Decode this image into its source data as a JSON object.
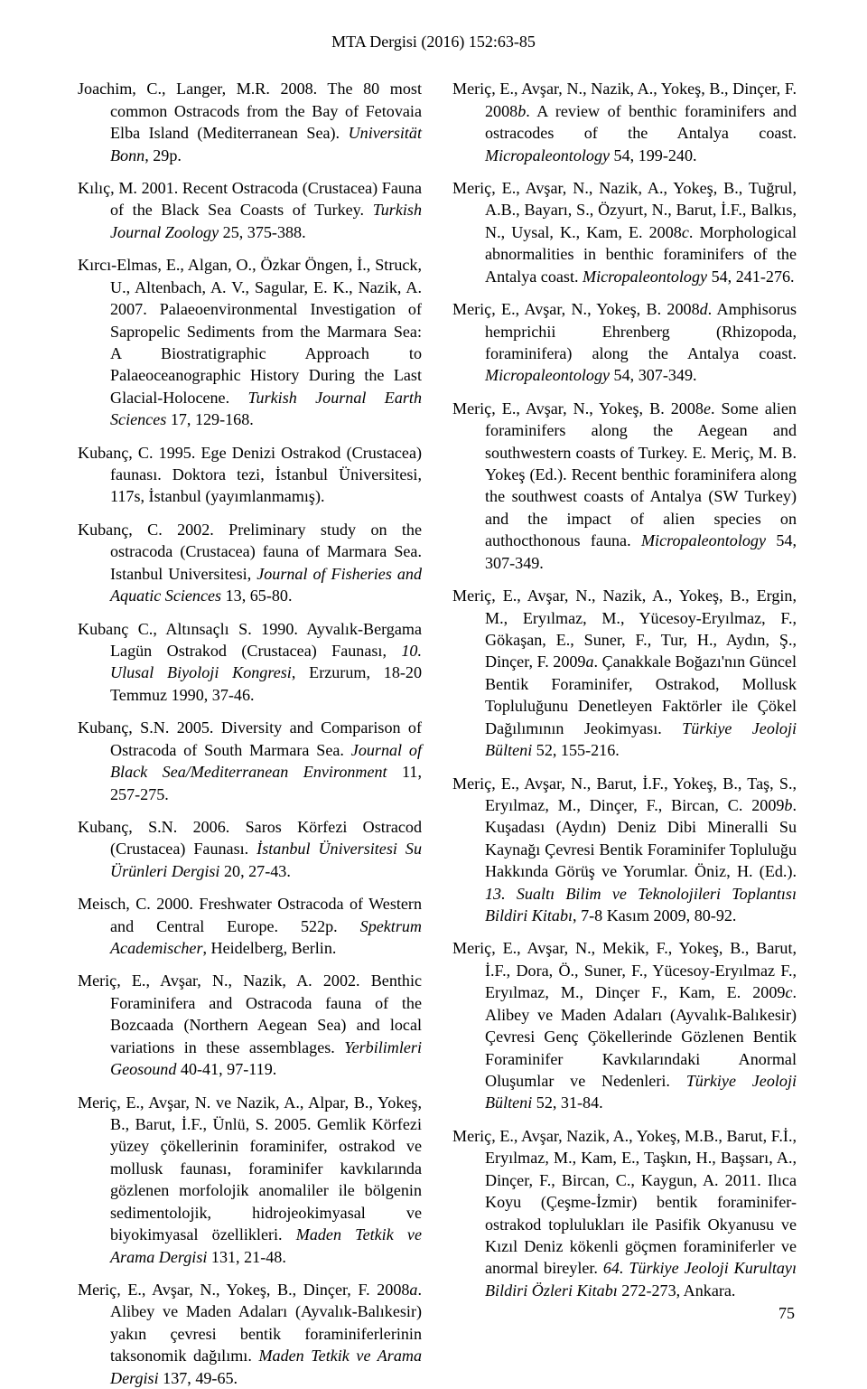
{
  "header": "MTA Dergisi (2016) 152:63-85",
  "page_number": "75",
  "fonts": {
    "body_family": "Times New Roman",
    "body_size_pt": 13.6,
    "header_size_pt": 13.5
  },
  "colors": {
    "text": "#000000",
    "background": "#ffffff"
  },
  "refs": [
    {
      "html": "Joachim, C., Langer, M.R. 2008. The 80 most common Ostracods from the Bay of Fetovaia Elba Island (Mediterranean Sea). <i>Universität Bonn</i>, 29p."
    },
    {
      "html": "Kılıç, M. 2001. Recent Ostracoda (Crustacea) Fauna of the Black Sea Coasts of Turkey. <i>Turkish Journal Zoology</i> 25, 375-388."
    },
    {
      "html": "Kırcı-Elmas, E., Algan, O., Özkar Öngen, İ., Struck, U., Altenbach, A. V., Sagular, E. K., Nazik, A. 2007. Palaeoenvironmental Investigation of Sapropelic Sediments from the Marmara Sea: A Biostratigraphic Approach to Palaeoceanographic History During the Last Glacial-Holocene. <i>Turkish Journal Earth Sciences</i> 17, 129-168."
    },
    {
      "html": "Kubanç, C. 1995. Ege Denizi Ostrakod (Crustacea) faunası. Doktora tezi, İstanbul Üniversitesi, 117s, İstanbul (yayımlanmamış)."
    },
    {
      "html": "Kubanç, C. 2002. Preliminary study on the ostracoda (Crustacea) fauna of Marmara Sea. Istanbul Universitesi, <i>Journal of Fisheries and Aquatic Sciences</i> 13, 65-80."
    },
    {
      "html": "Kubanç C., Altınsaçlı S. 1990. Ayvalık-Bergama Lagün Ostrakod (Crustacea) Faunası, <i>10. Ulusal Biyoloji Kongresi</i>, Erzurum, 18-20 Temmuz 1990, 37-46."
    },
    {
      "html": "Kubanç, S.N. 2005. Diversity and Comparison of Ostracoda of South Marmara Sea. <i>Journal of Black Sea/Mediterranean Environment</i> 11, 257-275."
    },
    {
      "html": "Kubanç, S.N. 2006. Saros Körfezi Ostracod (Crustacea) Faunası. <i>İstanbul Üniversitesi Su Ürünleri Dergisi</i> 20, 27-43."
    },
    {
      "html": "Meisch, C. 2000. Freshwater Ostracoda of Western and Central Europe. 522p. <i>Spektrum Academischer</i>, Heidelberg, Berlin."
    },
    {
      "html": "Meriç, E., Avşar, N., Nazik, A. 2002. Benthic Foraminifera and Ostracoda fauna of the Bozcaada (Northern Aegean Sea) and local variations in these assemblages. <i>Yerbilimleri Geosound</i> 40-41, 97-119."
    },
    {
      "html": "Meriç, E., Avşar, N. ve Nazik, A., Alpar, B., Yokeş, B., Barut, İ.F., Ünlü, S. 2005. Gemlik Körfezi yüzey çökellerinin foraminifer, ostrakod ve mollusk faunası, foraminifer kavkılarında gözlenen morfolojik anomaliler ile bölgenin sedimentolojik, hidrojeokimyasal ve biyokimyasal özellikleri. <i>Maden Tetkik ve Arama Dergisi</i> 131, 21-48."
    },
    {
      "html": "Meriç, E., Avşar, N., Yokeş, B., Dinçer, F. 2008<i>a</i>. Alibey ve Maden Adaları (Ayvalık-Balıkesir) yakın çevresi bentik foraminiferlerinin taksonomik dağılımı. <i>Maden Tetkik ve Arama Dergisi</i> 137, 49-65."
    },
    {
      "html": "Meriç, E., Avşar, N., Nazik, A., Yokeş, B., Dinçer, F. 2008<i>b</i>. A review of benthic foraminifers and ostracodes of the Antalya coast. <i>Micropaleontology</i> 54, 199-240."
    },
    {
      "html": "Meriç, E., Avşar, N., Nazik, A., Yokeş, B., Tuğrul, A.B., Bayarı, S., Özyurt, N., Barut, İ.F., Balkıs, N., Uysal, K., Kam, E. 2008<i>c</i>. Morphological abnormalities in benthic foraminifers of the Antalya coast. <i>Micropaleontology</i> 54, 241-276."
    },
    {
      "html": "Meriç, E., Avşar, N., Yokeş, B. 2008<i>d</i>. Amphisorus hemprichii Ehrenberg (Rhizopoda, foraminifera) along the Antalya coast. <i>Micropaleontology</i> 54, 307-349."
    },
    {
      "html": "Meriç, E., Avşar, N., Yokeş, B. 2008<i>e</i>. Some alien foraminifers along the Aegean and southwestern coasts of Turkey. E. Meriç, M. B. Yokeş (Ed.). Recent benthic foraminifera along the southwest coasts of Antalya (SW Turkey) and the impact of alien species on authocthonous fauna. <i>Micropaleontology</i> 54, 307-349."
    },
    {
      "html": "Meriç, E., Avşar, N., Nazik, A., Yokeş, B., Ergin, M., Eryılmaz, M., Yücesoy-Eryılmaz, F., Gökaşan, E., Suner, F., Tur, H., Aydın, Ş., Dinçer, F. 2009<i>a</i>. Çanakkale Boğazı'nın Güncel Bentik Foraminifer, Ostrakod, Mollusk Topluluğunu Denetleyen Faktörler ile Çökel Dağılımının Jeokimyası. <i>Türkiye Jeoloji Bülteni</i> 52, 155-216."
    },
    {
      "html": "Meriç, E., Avşar, N., Barut, İ.F., Yokeş, B., Taş, S., Eryılmaz, M., Dinçer, F., Bircan, C. 2009<i>b</i>. Kuşadası (Aydın) Deniz Dibi Mineralli Su Kaynağı Çevresi Bentik Foraminifer Topluluğu Hakkında Görüş ve Yorumlar. Öniz, H. (Ed.). <i>13. Sualtı Bilim ve Teknolojileri Toplantısı Bildiri Kitabı</i>, 7-8 Kasım 2009, 80-92."
    },
    {
      "html": "Meriç, E., Avşar, N., Mekik, F., Yokeş, B., Barut, İ.F., Dora, Ö., Suner, F., Yücesoy-Eryılmaz F., Eryılmaz, M., Dinçer F., Kam, E. 2009<i>c</i>. Alibey ve Maden Adaları (Ayvalık-Balıkesir) Çevresi Genç Çökellerinde Gözlenen Bentik Foraminifer Kavkılarındaki Anormal Oluşumlar ve Nedenleri. <i>Türkiye Jeoloji Bülteni</i> 52, 31-84."
    },
    {
      "html": "Meriç, E., Avşar, Nazik, A., Yokeş, M.B., Barut, F.İ., Eryılmaz, M., Kam, E., Taşkın, H., Başsarı, A., Dinçer, F., Bircan, C., Kaygun, A. 2011. Ilıca Koyu (Çeşme-İzmir) bentik foraminifer-ostrakod toplulukları ile Pasifik Okyanusu ve Kızıl Deniz kökenli göçmen foraminiferler ve anormal bireyler. <i>64. Türkiye Jeoloji Kurultayı Bildiri Özleri Kitabı</i> 272-273, Ankara."
    }
  ]
}
